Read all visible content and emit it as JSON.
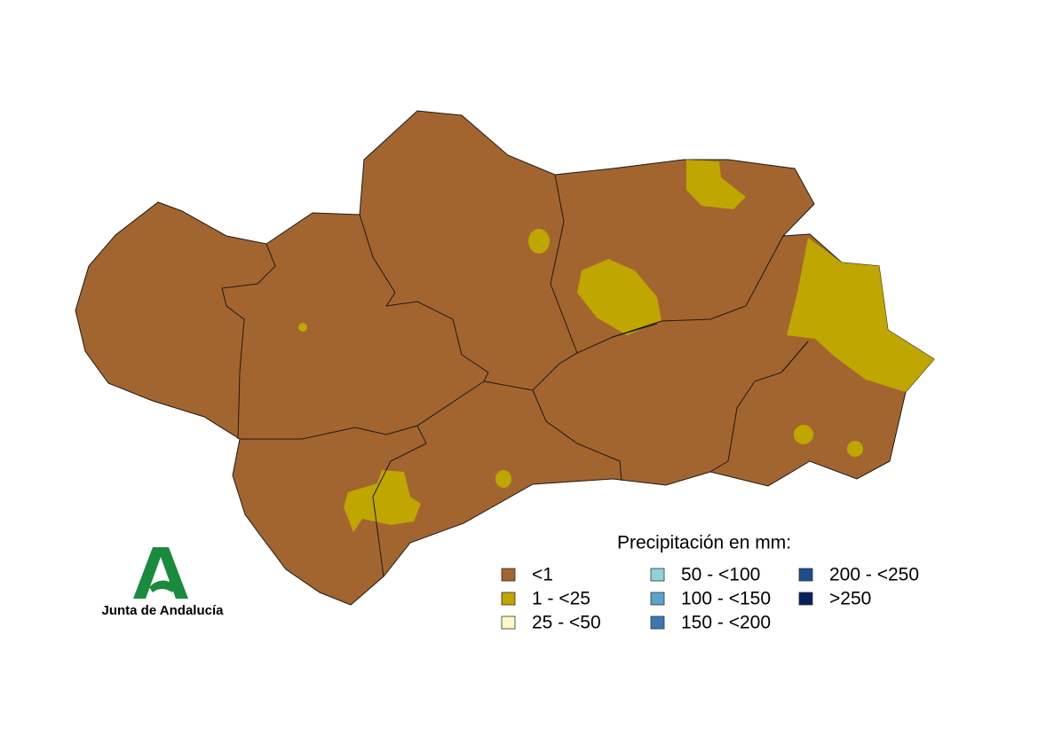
{
  "legend": {
    "title": "Precipitación en mm:",
    "items": [
      {
        "label": "<1",
        "color": "#a3652f"
      },
      {
        "label": "1 - <25",
        "color": "#bfa600"
      },
      {
        "label": "25 - <50",
        "color": "#fff8c8"
      },
      {
        "label": "50 - <100",
        "color": "#8ed2dc"
      },
      {
        "label": "100 - <150",
        "color": "#5ba3cc"
      },
      {
        "label": "150 - <200",
        "color": "#3a78b0"
      },
      {
        "label": "200 - <250",
        "color": "#1b4e8c"
      },
      {
        "label": ">250",
        "color": "#08205e"
      }
    ]
  },
  "logo": {
    "text": "Junta de Andalucía"
  }
}
